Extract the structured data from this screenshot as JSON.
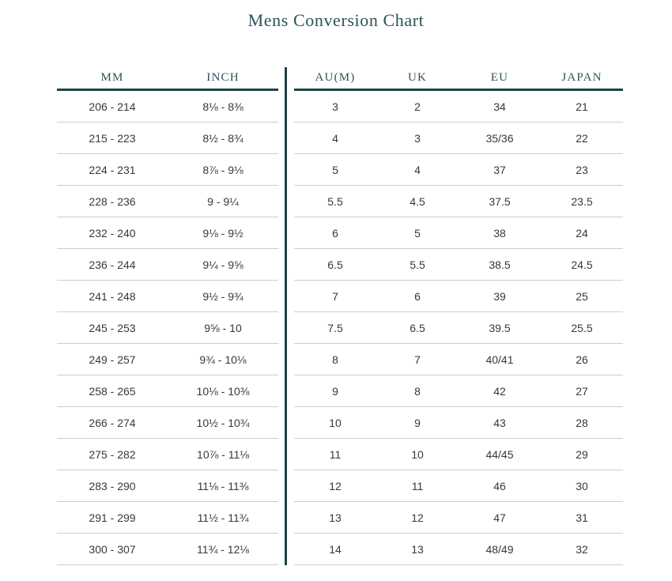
{
  "chart_data": {
    "type": "table",
    "title": "Mens Conversion Chart",
    "columns": [
      "MM",
      "INCH",
      "AU(M)",
      "UK",
      "EU",
      "JAPAN"
    ],
    "column_groups": {
      "left": [
        "MM",
        "INCH"
      ],
      "right": [
        "AU(M)",
        "UK",
        "EU",
        "JAPAN"
      ]
    },
    "rows": [
      [
        "206 - 214",
        "8⅛ - 8⅜",
        "3",
        "2",
        "34",
        "21"
      ],
      [
        "215 - 223",
        "8½ - 8¾",
        "4",
        "3",
        "35/36",
        "22"
      ],
      [
        "224 - 231",
        "8⅞ - 9⅛",
        "5",
        "4",
        "37",
        "23"
      ],
      [
        "228 - 236",
        "9 - 9¼",
        "5.5",
        "4.5",
        "37.5",
        "23.5"
      ],
      [
        "232 - 240",
        "9⅛ - 9½",
        "6",
        "5",
        "38",
        "24"
      ],
      [
        "236 - 244",
        "9¼ - 9⅝",
        "6.5",
        "5.5",
        "38.5",
        "24.5"
      ],
      [
        "241 - 248",
        "9½ - 9¾",
        "7",
        "6",
        "39",
        "25"
      ],
      [
        "245 - 253",
        "9⅝ - 10",
        "7.5",
        "6.5",
        "39.5",
        "25.5"
      ],
      [
        "249 - 257",
        "9¾ - 10⅛",
        "8",
        "7",
        "40/41",
        "26"
      ],
      [
        "258 - 265",
        "10⅛ - 10⅜",
        "9",
        "8",
        "42",
        "27"
      ],
      [
        "266 - 274",
        "10½ - 10¾",
        "10",
        "9",
        "43",
        "28"
      ],
      [
        "275 - 282",
        "10⅞ - 11⅛",
        "11",
        "10",
        "44/45",
        "29"
      ],
      [
        "283 - 290",
        "11⅛ - 11⅜",
        "12",
        "11",
        "46",
        "30"
      ],
      [
        "291 - 299",
        "11½ - 11¾",
        "13",
        "12",
        "47",
        "31"
      ],
      [
        "300 - 307",
        "11¾ - 12⅛",
        "14",
        "13",
        "48/49",
        "32"
      ]
    ],
    "layout": {
      "grid": "horizontal row separators only",
      "divider": "vertical rule between INCH and AU(M) groups"
    }
  },
  "theme": {
    "accent_line": "#1c4345",
    "header_text": "#2c5358",
    "body_text": "#383838",
    "row_divider": "#cdcdcd",
    "background": "#ffffff"
  }
}
